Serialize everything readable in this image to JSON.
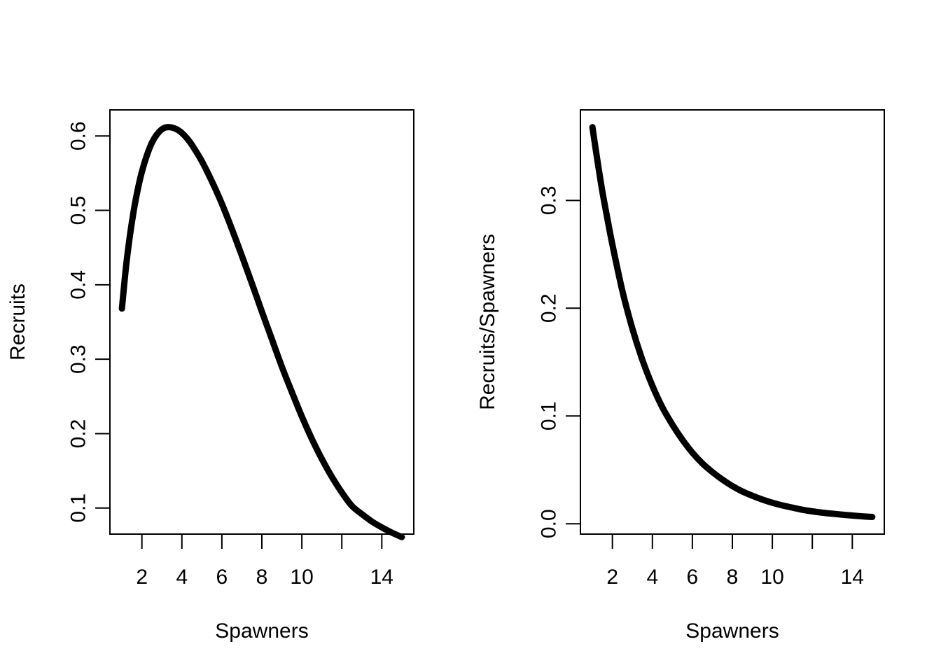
{
  "chart_data": [
    {
      "type": "line",
      "title": "",
      "xlabel": "Spawners",
      "ylabel": "Recruits",
      "xlim": [
        0.4,
        15.6
      ],
      "ylim": [
        0.065,
        0.635
      ],
      "xticks": [
        2,
        4,
        6,
        8,
        10,
        12,
        14
      ],
      "xtick_labels": [
        "2",
        "4",
        "6",
        "8",
        "10",
        "",
        "14"
      ],
      "yticks": [
        0.1,
        0.2,
        0.3,
        0.4,
        0.5,
        0.6
      ],
      "ytick_labels": [
        "0.1",
        "0.2",
        "0.3",
        "0.4",
        "0.5",
        "0.6"
      ],
      "grid": false,
      "series": [
        {
          "x": [
            1.0,
            1.2,
            1.4,
            1.6,
            1.8,
            2.0,
            2.25,
            2.5,
            2.75,
            3.0,
            3.2,
            3.4,
            3.6,
            3.8,
            4.0,
            4.25,
            4.5,
            5.0,
            5.5,
            6.0,
            6.5,
            7.0,
            7.5,
            8.0,
            8.5,
            9.0,
            9.5,
            10.0,
            10.5,
            11.0,
            11.5,
            12.0,
            12.5,
            13.0,
            13.5,
            14.0,
            14.5,
            15.0
          ],
          "y": [
            0.368,
            0.423,
            0.466,
            0.501,
            0.529,
            0.552,
            0.574,
            0.591,
            0.602,
            0.609,
            0.6115,
            0.6118,
            0.6105,
            0.608,
            0.604,
            0.597,
            0.588,
            0.566,
            0.539,
            0.509,
            0.475,
            0.439,
            0.402,
            0.364,
            0.327,
            0.29,
            0.256,
            0.223,
            0.193,
            0.166,
            0.142,
            0.121,
            0.103,
            0.092,
            0.082,
            0.074,
            0.067,
            0.061
          ]
        }
      ]
    },
    {
      "type": "line",
      "title": "",
      "xlabel": "Spawners",
      "ylabel": "Recruits/Spawners",
      "xlim": [
        0.4,
        15.6
      ],
      "ylim": [
        -0.0096,
        0.384
      ],
      "xticks": [
        2,
        4,
        6,
        8,
        10,
        12,
        14
      ],
      "xtick_labels": [
        "2",
        "4",
        "6",
        "8",
        "10",
        "",
        "14"
      ],
      "yticks": [
        0.0,
        0.1,
        0.2,
        0.3
      ],
      "ytick_labels": [
        "0.0",
        "0.1",
        "0.2",
        "0.3"
      ],
      "grid": false,
      "series": [
        {
          "x": [
            1.0,
            1.25,
            1.5,
            1.75,
            2.0,
            2.5,
            3.0,
            3.5,
            4.0,
            4.5,
            5.0,
            5.5,
            6.0,
            6.5,
            7.0,
            7.5,
            8.0,
            8.5,
            9.0,
            9.5,
            10.0,
            10.5,
            11.0,
            11.5,
            12.0,
            12.5,
            13.0,
            13.5,
            14.0,
            14.5,
            15.0
          ],
          "y": [
            0.368,
            0.337,
            0.308,
            0.283,
            0.259,
            0.216,
            0.181,
            0.152,
            0.128,
            0.108,
            0.092,
            0.078,
            0.066,
            0.056,
            0.048,
            0.041,
            0.035,
            0.03,
            0.026,
            0.0225,
            0.0195,
            0.017,
            0.015,
            0.013,
            0.0115,
            0.0103,
            0.0093,
            0.0084,
            0.0076,
            0.0069,
            0.0063
          ]
        }
      ]
    }
  ]
}
